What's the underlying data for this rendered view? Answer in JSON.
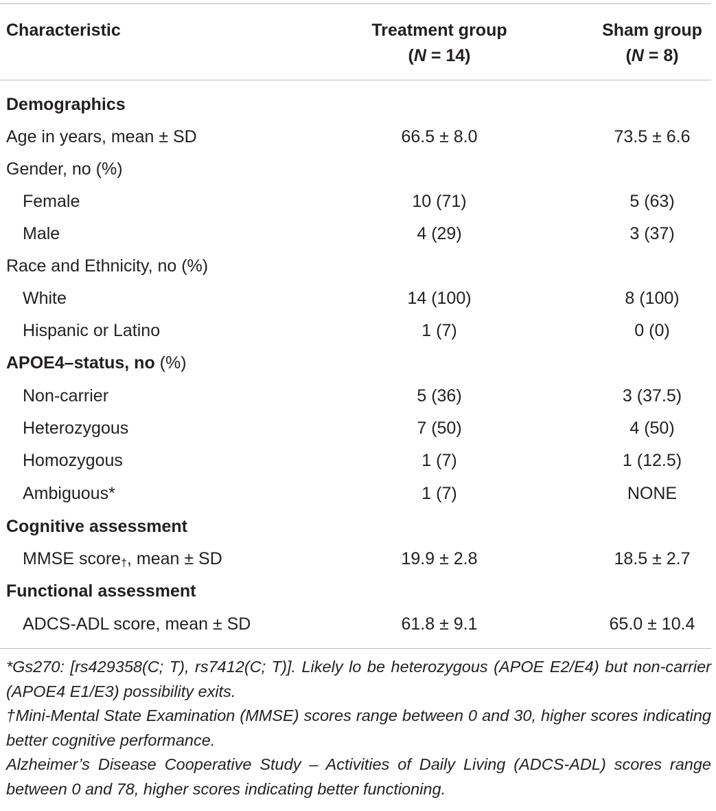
{
  "header": {
    "characteristic": "Characteristic",
    "treatment_line1": "Treatment group",
    "treatment_n_label": "N",
    "treatment_n_value": " = 14)",
    "sham_line1": "Sham group",
    "sham_n_label": "N",
    "sham_n_value": " = 8)"
  },
  "rows": [
    {
      "label": "Demographics",
      "treatment": "",
      "sham": ""
    },
    {
      "label": "Age in years, mean ± SD",
      "treatment": "66.5 ± 8.0",
      "sham": "73.5 ± 6.6"
    },
    {
      "label": "Gender, no (%)",
      "treatment": "",
      "sham": ""
    },
    {
      "label": "Female",
      "treatment": "10 (71)",
      "sham": "5 (63)"
    },
    {
      "label": "Male",
      "treatment": "4 (29)",
      "sham": "3 (37)"
    },
    {
      "label": "Race and Ethnicity, no (%)",
      "treatment": "",
      "sham": ""
    },
    {
      "label": "White",
      "treatment": "14 (100)",
      "sham": "8 (100)"
    },
    {
      "label": "Hispanic or Latino",
      "treatment": "1 (7)",
      "sham": "0 (0)"
    },
    {
      "label_bold": "APOE4–status, no",
      "label_rest": " (%)",
      "treatment": "",
      "sham": ""
    },
    {
      "label": "Non-carrier",
      "treatment": "5 (36)",
      "sham": "3 (37.5)"
    },
    {
      "label": "Heterozygous",
      "treatment": "7 (50)",
      "sham": "4 (50)"
    },
    {
      "label": "Homozygous",
      "treatment": "1 (7)",
      "sham": "1 (12.5)"
    },
    {
      "label": "Ambiguous*",
      "treatment": "1 (7)",
      "sham": "NONE"
    },
    {
      "label": "Cognitive assessment",
      "treatment": "",
      "sham": ""
    },
    {
      "label_pre": "MMSE score",
      "label_dagger": "†",
      "label_post": ", mean ± SD",
      "treatment": "19.9 ± 2.8",
      "sham": "18.5 ± 2.7"
    },
    {
      "label": "Functional assessment",
      "treatment": "",
      "sham": ""
    },
    {
      "label": "ADCS-ADL score, mean ± SD",
      "treatment": "61.8 ± 9.1",
      "sham": "65.0 ± 10.4"
    }
  ],
  "footnotes": [
    "*Gs270: [rs429358(C; T), rs7412(C; T)]. Likely lo be heterozygous (APOE E2/E4) but non-carrier (APOE4 E1/E3) possibility exits.",
    "†Mini-Mental State Examination (MMSE) scores range between 0 and 30, higher scores indicating better cognitive performance.",
    "Alzheimer’s Disease Cooperative Study – Activities of Daily Living (ADCS-ADL) scores range between 0 and 78, higher scores indicating better functioning."
  ]
}
